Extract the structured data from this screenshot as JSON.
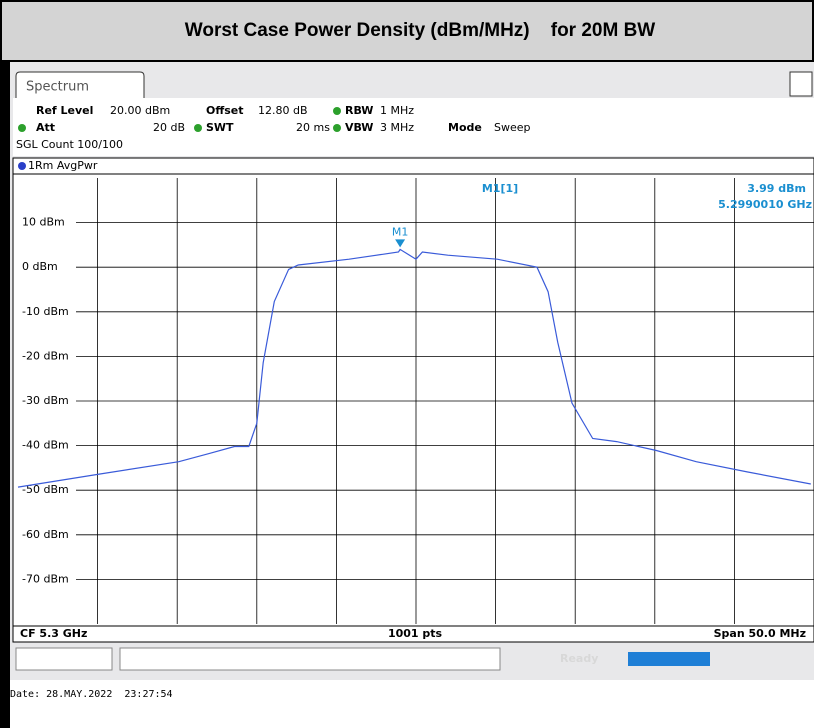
{
  "chart_data": {
    "type": "line",
    "title": "Worst Case Power Density (dBm/MHz)    for 20M BW",
    "tab": "Spectrum",
    "settings": {
      "ref_level_label": "Ref Level",
      "ref_level": "20.00 dBm",
      "offset_label": "Offset",
      "offset": "12.80 dB",
      "rbw_label": "RBW",
      "rbw": "1 MHz",
      "att_label": "Att",
      "att": "20 dB",
      "swt_label": "SWT",
      "swt": "20 ms",
      "vbw_label": "VBW",
      "vbw": "3 MHz",
      "mode_label": "Mode",
      "mode": "Sweep",
      "count": "SGL Count 100/100"
    },
    "trace_label": "1Rm AvgPwr",
    "footer_left": "CF 5.3 GHz",
    "footer_center": "1001 pts",
    "footer_right": "Span 50.0 MHz",
    "status": "Ready",
    "date": "Date: 28.MAY.2022  23:27:54",
    "x": [
      5.275,
      5.2801,
      5.2851,
      5.287,
      5.2886,
      5.2895,
      5.29,
      5.2904,
      5.2911,
      5.292,
      5.2926,
      5.2958,
      5.2989,
      5.299001,
      5.3,
      5.3004,
      5.302,
      5.3051,
      5.3076,
      5.3083,
      5.3089,
      5.3098,
      5.3111,
      5.3126,
      5.3151,
      5.3176,
      5.3208,
      5.3248
    ],
    "series": [
      {
        "name": "1Rm AvgPwr",
        "color": "#3a5bd9",
        "values": [
          -49.3,
          -46.4,
          -43.6,
          -41.8,
          -40.2,
          -40.2,
          -35,
          -21.4,
          -7.7,
          -0.5,
          0.5,
          1.8,
          3.4,
          3.99,
          1.8,
          3.4,
          2.7,
          1.8,
          0,
          -5.5,
          -16.8,
          -30.5,
          -38.4,
          -39.1,
          -41.1,
          -43.6,
          -45.9,
          -48.6
        ]
      }
    ],
    "marker": {
      "name": "M1",
      "readout": "M1[1]",
      "x": 5.299001,
      "y": 3.99,
      "x_label": "5.2990010 GHz",
      "y_label": "3.99 dBm",
      "color": "#1a8fd0"
    },
    "xlim": [
      5.275,
      5.325
    ],
    "xticks": [
      5.28,
      5.285,
      5.29,
      5.295,
      5.3,
      5.305,
      5.31,
      5.315,
      5.32
    ],
    "ylim": [
      -80,
      20
    ],
    "yticks": [
      {
        "value": 10,
        "label": "10 dBm"
      },
      {
        "value": 0,
        "label": "0 dBm"
      },
      {
        "value": -10,
        "label": "-10 dBm"
      },
      {
        "value": -20,
        "label": "-20 dBm"
      },
      {
        "value": -30,
        "label": "-30 dBm"
      },
      {
        "value": -40,
        "label": "-40 dBm"
      },
      {
        "value": -50,
        "label": "-50 dBm"
      },
      {
        "value": -60,
        "label": "-60 dBm"
      },
      {
        "value": -70,
        "label": "-70 dBm"
      }
    ],
    "grid": true
  }
}
